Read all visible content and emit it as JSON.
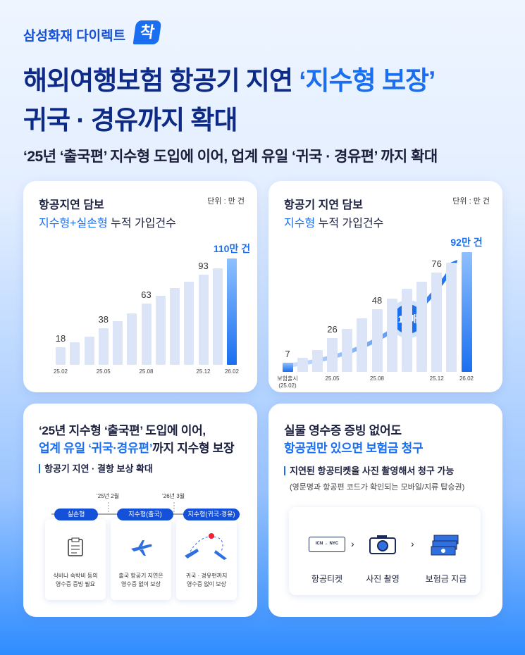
{
  "header": {
    "brand": "삼성화재 다이렉트",
    "badge": "착",
    "title_line1": "해외여행보험 항공기 지연",
    "title_highlight": "‘지수형 보장’",
    "title_line2": "귀국 · 경유까지 확대",
    "subtitle": "‘25년 ‘출국편’ 지수형 도입에 이어, 업계 유일 ‘귀국 · 경유편’ 까지 확대"
  },
  "chart_data": [
    {
      "type": "bar",
      "title": "항공지연 담보",
      "subtitle_highlight": "지수형+실손형",
      "subtitle": "누적 가입건수",
      "unit": "단위 : 만 건",
      "categories": [
        "25.02",
        null,
        null,
        "25.05",
        null,
        null,
        "25.08",
        null,
        null,
        null,
        "25.12",
        null,
        "26.02"
      ],
      "values": [
        18,
        23,
        29,
        38,
        45,
        53,
        63,
        71,
        79,
        86,
        93,
        100,
        110
      ],
      "value_labels": [
        "18",
        null,
        null,
        "38",
        null,
        null,
        "63",
        null,
        null,
        null,
        "93",
        null,
        "110만 건"
      ],
      "color": "#dbe5f7",
      "highlight_color": "#1a6ff0",
      "highlight": [
        12
      ],
      "ylim": [
        0,
        120
      ]
    },
    {
      "type": "bar",
      "title": "항공기 지연 담보",
      "subtitle_highlight": "지수형",
      "subtitle": "누적 가입건수",
      "unit": "단위 : 만 건",
      "categories": [
        "보험출시\n(25.02)",
        null,
        null,
        "25.05",
        null,
        null,
        "25.08",
        null,
        null,
        null,
        "25.12",
        null,
        "26.02"
      ],
      "values": [
        7,
        11,
        17,
        26,
        33,
        41,
        48,
        56,
        64,
        69,
        76,
        84,
        92
      ],
      "value_labels": [
        "7",
        null,
        null,
        "26",
        null,
        null,
        "48",
        null,
        null,
        null,
        "76",
        null,
        "92만 건"
      ],
      "annotation": "13배",
      "color": "#dbe5f7",
      "highlight_color": "#1a6ff0",
      "highlight": [
        0,
        12
      ],
      "ylim": [
        0,
        100
      ]
    }
  ],
  "timeline_card": {
    "line1": "‘25년 지수형 ‘출국편’ 도입에 이어,",
    "line2_highlight": "업계 유일 ‘귀국·경유편’",
    "line2": "까지 지수형 보장",
    "section": "항공기 지연 · 결항 보상 확대",
    "dates": [
      "‘25년 2월",
      "‘26년 3월"
    ],
    "columns": [
      {
        "pill": "실손형",
        "caption": "식비나 숙박비 등의\n영수증 증빙 필요"
      },
      {
        "pill": "지수형(출국)",
        "caption": "출국 항공기 지연은\n영수증 없이 보상"
      },
      {
        "pill": "지수형(귀국·경유)",
        "caption": "귀국 · 경유편까지\n영수증 없이 보상"
      }
    ]
  },
  "claim_card": {
    "line1": "실물 영수증 증빙 없어도",
    "line2_highlight": "항공권만 있으면 보험금 청구",
    "section": "지연된 항공티켓을 사진 촬영해서 청구 가능",
    "note": "(영문명과 항공편 코드가 확인되는 모바일/지류 탑승권)",
    "ticket_from": "ICN",
    "ticket_to": "NYC",
    "steps": [
      "항공티켓",
      "사진 촬영",
      "보험금 지급"
    ]
  }
}
